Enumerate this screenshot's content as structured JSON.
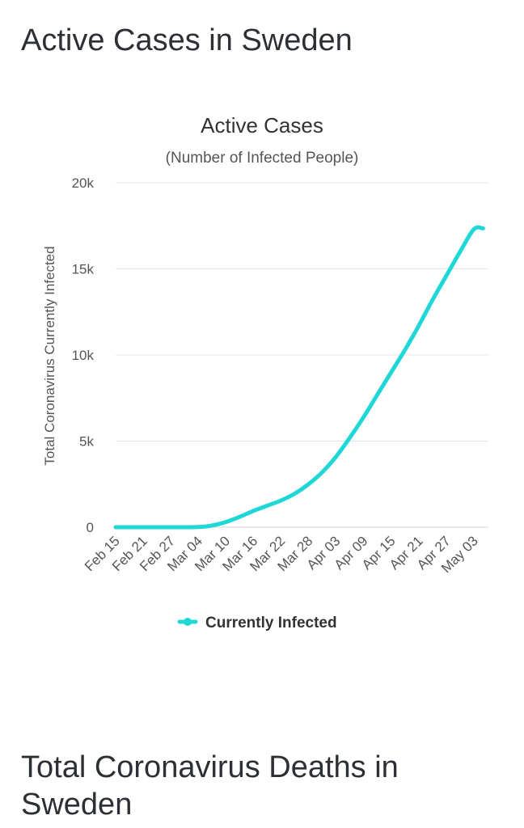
{
  "page": {
    "title": "Active Cases in Sweden",
    "next_section_title": "Total Coronavirus Deaths in Sweden"
  },
  "colors": {
    "series": "#1fd7d7",
    "grid": "#e6e6e6",
    "text": "#2c2f33"
  },
  "chart_data": {
    "type": "line",
    "title": "Active Cases",
    "subtitle": "(Number of Infected People)",
    "xlabel": "",
    "ylabel": "Total Coronavirus Currently Infected",
    "ylim": [
      0,
      20000
    ],
    "yticks": [
      0,
      5000,
      10000,
      15000,
      20000
    ],
    "ytick_labels": [
      "0",
      "5k",
      "10k",
      "15k",
      "20k"
    ],
    "xtick_labels": [
      "Feb 15",
      "Feb 21",
      "Feb 27",
      "Mar 04",
      "Mar 10",
      "Mar 16",
      "Mar 22",
      "Mar 28",
      "Apr 03",
      "Apr 09",
      "Apr 15",
      "Apr 21",
      "Apr 27",
      "May 03"
    ],
    "grid": true,
    "legend": "bottom-center",
    "series": [
      {
        "name": "Currently Infected",
        "x": [
          "Feb 15",
          "Feb 21",
          "Feb 27",
          "Mar 04",
          "Mar 07",
          "Mar 10",
          "Mar 13",
          "Mar 16",
          "Mar 19",
          "Mar 22",
          "Mar 25",
          "Mar 28",
          "Mar 31",
          "Apr 03",
          "Apr 06",
          "Apr 09",
          "Apr 12",
          "Apr 15",
          "Apr 18",
          "Apr 21",
          "Apr 24",
          "Apr 27",
          "Apr 30",
          "May 03",
          "May 05"
        ],
        "values": [
          0,
          0,
          0,
          10,
          100,
          300,
          600,
          950,
          1250,
          1550,
          1950,
          2500,
          3200,
          4100,
          5200,
          6400,
          7700,
          9000,
          10300,
          11700,
          13200,
          14600,
          16000,
          17300,
          17350
        ]
      }
    ]
  }
}
